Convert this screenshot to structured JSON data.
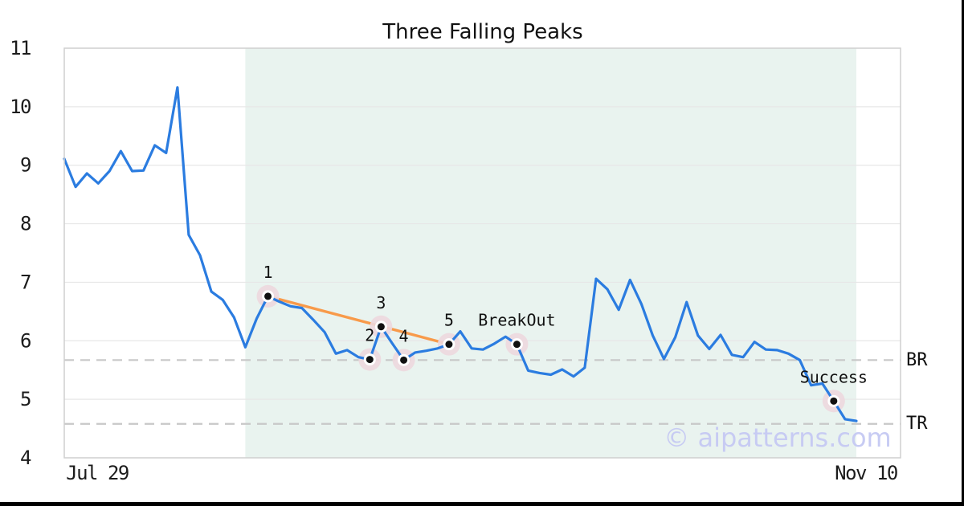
{
  "watermark": "© aipatterns.com",
  "colors": {
    "price_line": "#2b7ce0",
    "trendline": "#f89a4a",
    "highlight_region": "#e9f3ef",
    "halo": "#edd8de",
    "marker_dot": "#111111",
    "marker_ring": "#ffffff",
    "level_dash": "#c8c8c8",
    "gridline": "#e7e7e7",
    "plot_border": "#cfcfcf",
    "watermark": "#c7cbf3",
    "frame_bar": "#000000",
    "text": "#111111"
  },
  "chart_data": {
    "type": "line",
    "title": "Three Falling Peaks",
    "x_axis": {
      "start_label": "Jul 29",
      "end_label": "Nov 10"
    },
    "y_axis": {
      "min": 4,
      "max": 11,
      "ticks": [
        4,
        5,
        6,
        7,
        8,
        9,
        10,
        11
      ]
    },
    "prices": [
      9.11,
      8.63,
      8.86,
      8.69,
      8.9,
      9.24,
      8.9,
      8.91,
      9.34,
      9.21,
      10.33,
      7.81,
      7.46,
      6.84,
      6.7,
      6.4,
      5.89,
      6.38,
      6.76,
      6.67,
      6.59,
      6.56,
      6.36,
      6.15,
      5.78,
      5.84,
      5.72,
      5.68,
      6.24,
      5.95,
      5.67,
      5.8,
      5.83,
      5.87,
      5.94,
      6.16,
      5.87,
      5.85,
      5.95,
      6.07,
      5.94,
      5.49,
      5.45,
      5.42,
      5.51,
      5.39,
      5.54,
      7.06,
      6.88,
      6.53,
      7.04,
      6.63,
      6.09,
      5.69,
      6.06,
      6.66,
      6.09,
      5.86,
      6.1,
      5.76,
      5.72,
      5.98,
      5.85,
      5.84,
      5.78,
      5.67,
      5.24,
      5.27,
      4.97,
      4.66,
      4.63
    ],
    "annotations": [
      {
        "index": 18,
        "label": "1",
        "price": 6.76
      },
      {
        "index": 27,
        "label": "2",
        "price": 5.68
      },
      {
        "index": 28,
        "label": "3",
        "price": 6.24
      },
      {
        "index": 30,
        "label": "4",
        "price": 5.67
      },
      {
        "index": 34,
        "label": "5",
        "price": 5.94
      },
      {
        "index": 40,
        "label": "BreakOut",
        "price": 5.94
      },
      {
        "index": 68,
        "label": "Success",
        "price": 4.97
      }
    ],
    "levels": [
      {
        "label": "BR",
        "value": 5.67
      },
      {
        "label": "TR",
        "value": 4.58
      }
    ],
    "trendline": {
      "from_index": 18,
      "to_index": 34
    },
    "highlight_region": {
      "from_index": 16,
      "to_index": 70
    },
    "grid": "horizontal",
    "legend": "none"
  }
}
